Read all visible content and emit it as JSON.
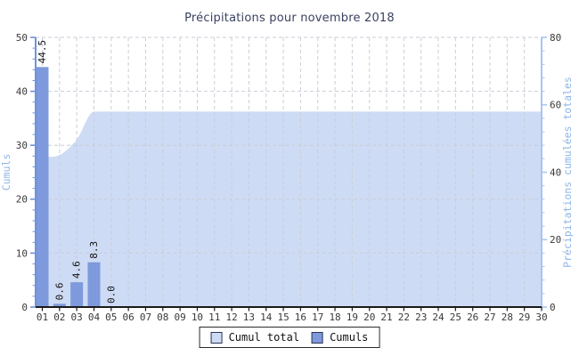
{
  "title": "Précipitations pour novembre 2018",
  "chart_data": {
    "type": "bar",
    "title": "Précipitations pour novembre 2018",
    "categories": [
      "01",
      "02",
      "03",
      "04",
      "05",
      "06",
      "07",
      "08",
      "09",
      "10",
      "11",
      "12",
      "13",
      "14",
      "15",
      "16",
      "17",
      "18",
      "19",
      "20",
      "21",
      "22",
      "23",
      "24",
      "25",
      "26",
      "27",
      "28",
      "29",
      "30"
    ],
    "series": [
      {
        "name": "Cumul total",
        "type": "area",
        "axis": "right",
        "color": "#cedbf5",
        "values": [
          44.5,
          45.1,
          49.7,
          58,
          58,
          58,
          58,
          58,
          58,
          58,
          58,
          58,
          58,
          58,
          58,
          58,
          58,
          58,
          58,
          58,
          58,
          58,
          58,
          58,
          58,
          58,
          58,
          58,
          58,
          58
        ]
      },
      {
        "name": "Cumuls",
        "type": "bar",
        "axis": "left",
        "color": "#7e99dc",
        "values": [
          44.5,
          0.6,
          4.6,
          8.3,
          0.0
        ],
        "labels": [
          "44.5",
          "0.6",
          "4.6",
          "8.3",
          "0.0"
        ]
      }
    ],
    "left_axis": {
      "title": "Cumuls",
      "min": 0,
      "max": 50,
      "major_step": 10,
      "minor_step": 2,
      "tick_labels": [
        "0",
        "10",
        "20",
        "30",
        "40",
        "50"
      ]
    },
    "right_axis": {
      "title": "Précipitations cumulées totales",
      "min": 0,
      "max": 80,
      "major_step": 20,
      "minor_step": 4,
      "tick_labels": [
        "0",
        "20",
        "40",
        "60",
        "80"
      ]
    },
    "legend": [
      {
        "label": "Cumul total",
        "color": "#cedbf5"
      },
      {
        "label": "Cumuls",
        "color": "#7e99dc"
      }
    ],
    "colors": {
      "left_axis": "#6e93da",
      "right_axis": "#a9c5f0",
      "x_axis": "#1a1a1a",
      "grid": "#c9ced8",
      "axis_title": "#8fb6e8",
      "tick_label": "#3a3a3a",
      "bar_label": "#111111",
      "title": "#3a4260"
    },
    "grid": true,
    "legend_position": "bottom"
  }
}
